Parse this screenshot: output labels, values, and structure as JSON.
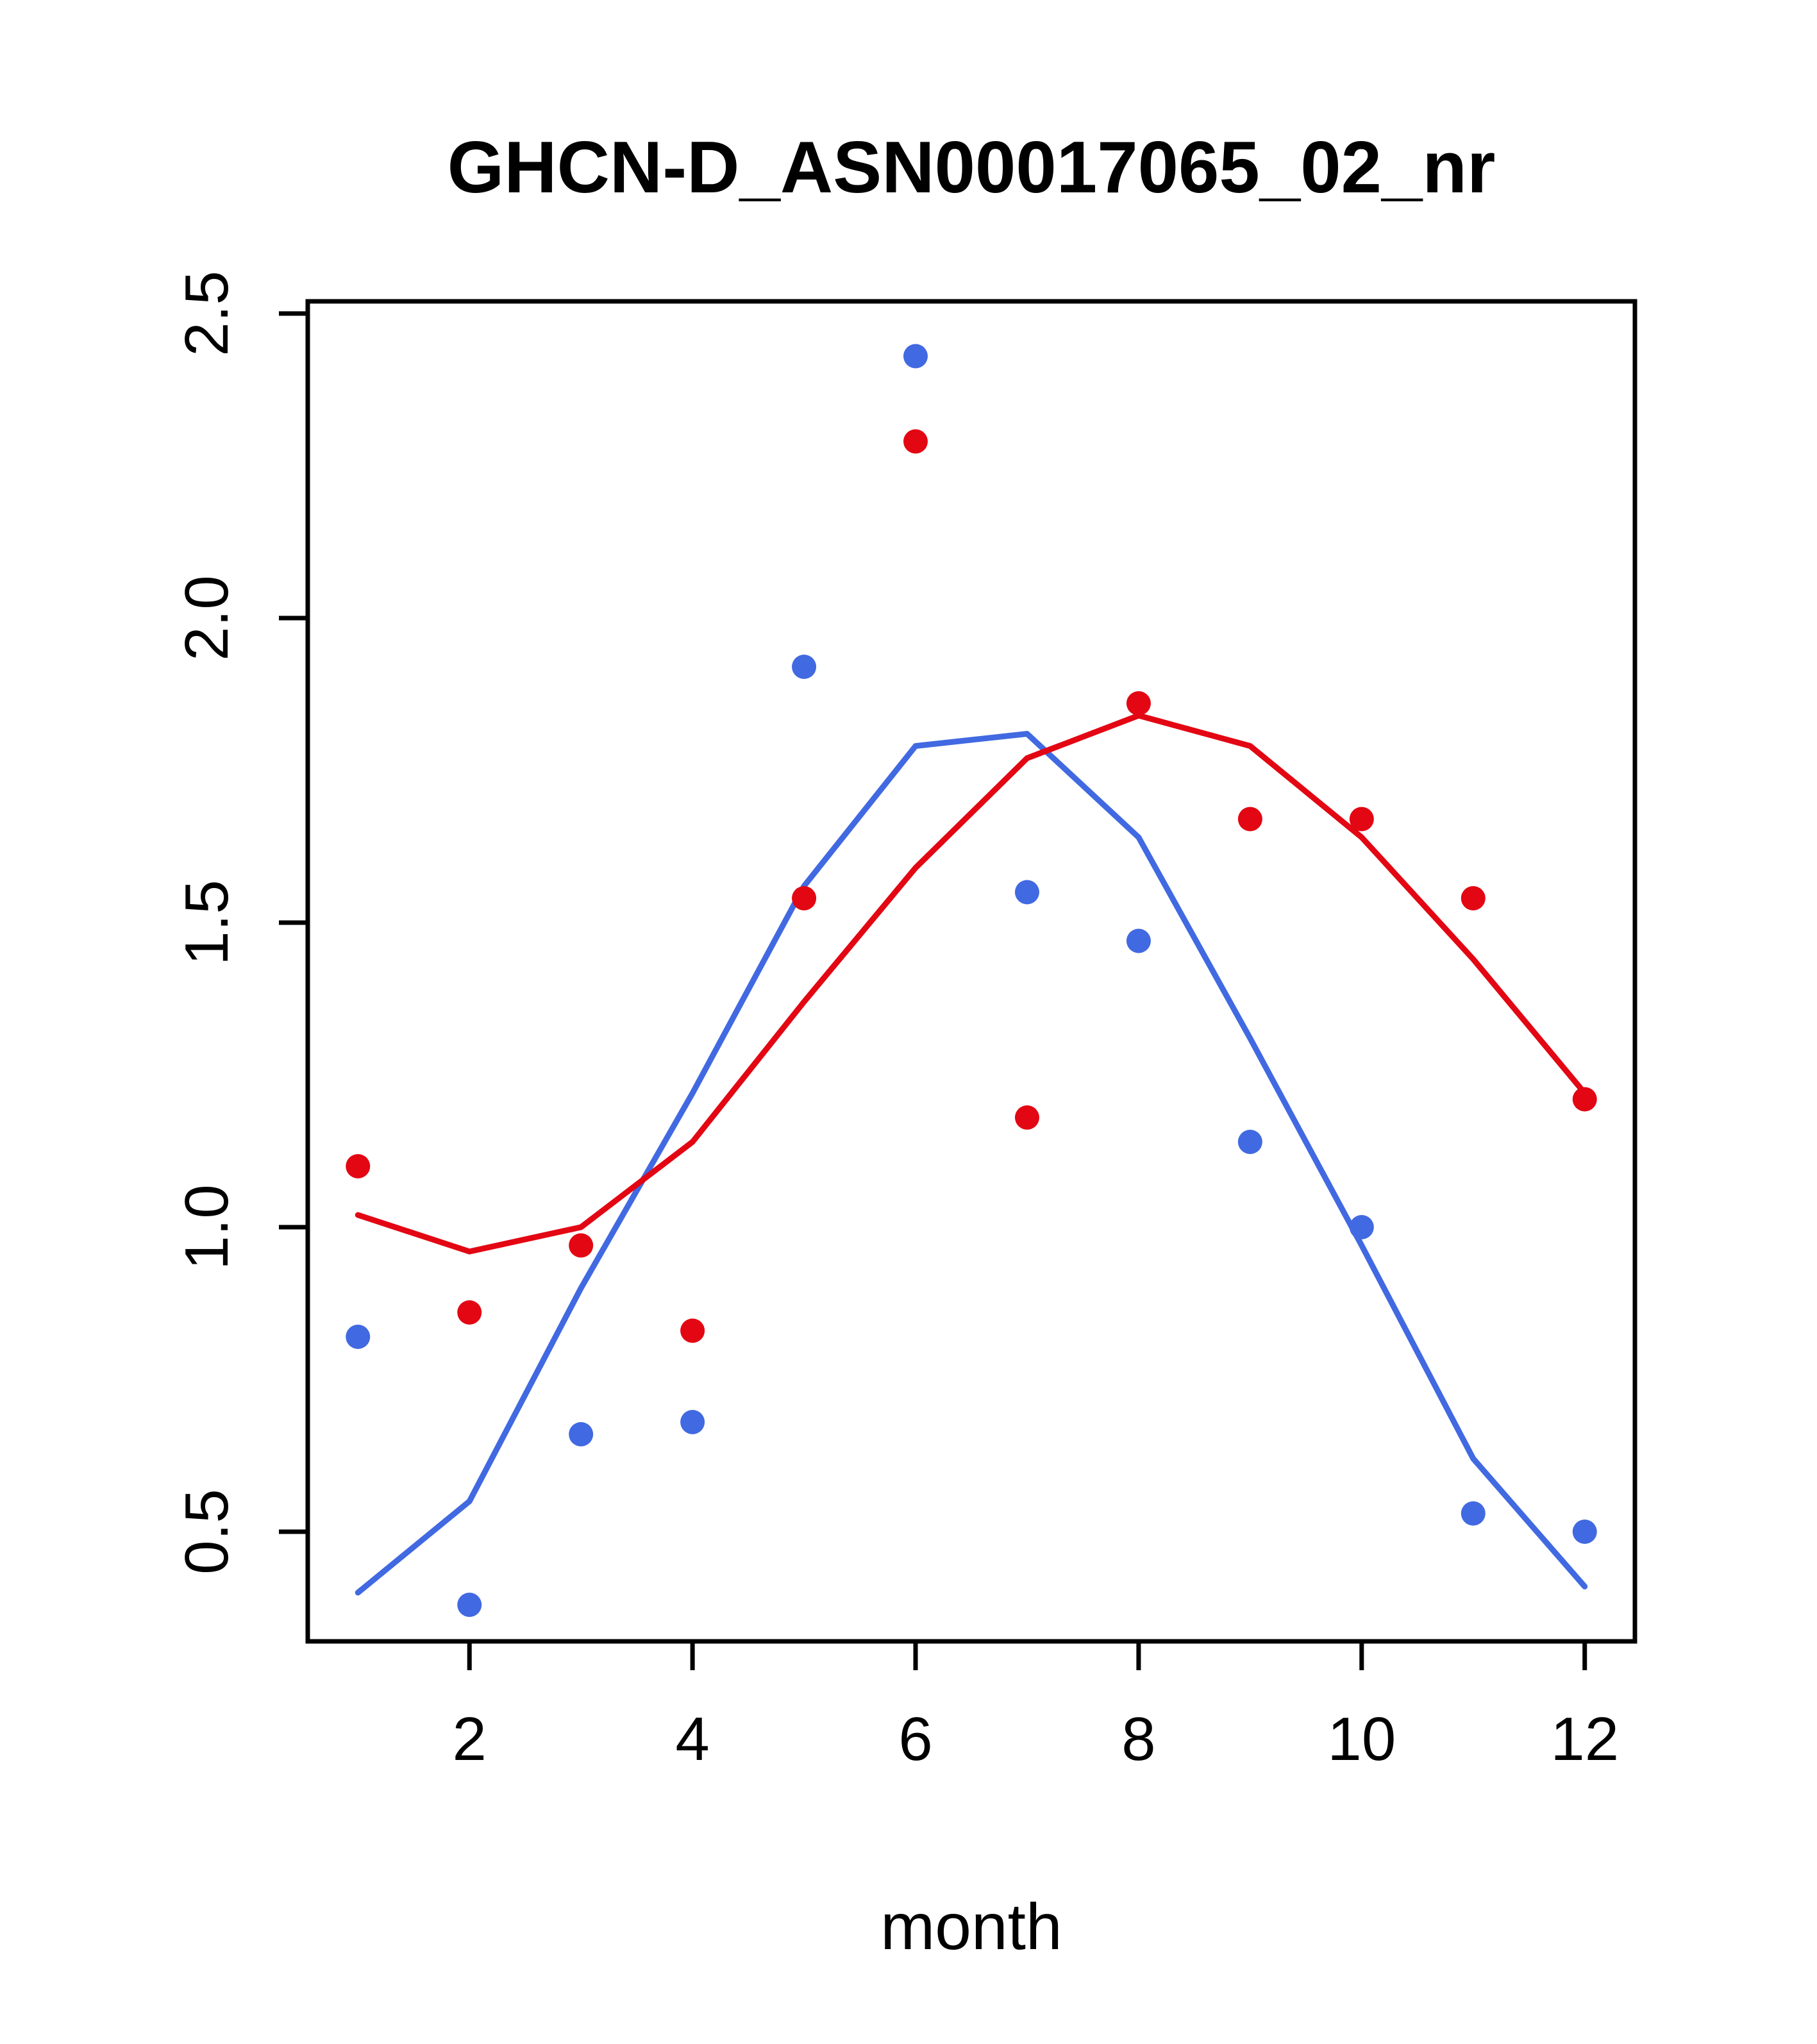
{
  "chart_data": {
    "type": "scatter",
    "title": "GHCN-D_ASN00017065_02_nr",
    "xlabel": "month",
    "ylabel": "",
    "xlim": [
      0.55,
      12.45
    ],
    "ylim": [
      0.32,
      2.52
    ],
    "x_ticks": [
      2,
      4,
      6,
      8,
      10,
      12
    ],
    "x_tick_labels": [
      "2",
      "4",
      "6",
      "8",
      "10",
      "12"
    ],
    "y_ticks": [
      0.5,
      1.0,
      1.5,
      2.0,
      2.5
    ],
    "y_tick_labels": [
      "0.5",
      "1.0",
      "1.5",
      "2.0",
      "2.5"
    ],
    "grid": false,
    "legend": "none",
    "x": [
      1,
      2,
      3,
      4,
      5,
      6,
      7,
      8,
      9,
      10,
      11,
      12
    ],
    "colors": {
      "blue": "#4169e1",
      "red": "#e30613",
      "axis": "#000000"
    },
    "series": [
      {
        "name": "blue-points",
        "mark": "points",
        "color_key": "blue",
        "values": [
          0.82,
          0.38,
          0.66,
          0.68,
          1.92,
          2.43,
          1.55,
          1.47,
          1.14,
          1.0,
          0.53,
          0.5
        ]
      },
      {
        "name": "red-points",
        "mark": "points",
        "color_key": "red",
        "values": [
          1.1,
          0.86,
          0.97,
          0.83,
          1.54,
          2.29,
          1.18,
          1.86,
          1.67,
          1.67,
          1.54,
          1.21
        ]
      },
      {
        "name": "blue-smooth-line",
        "mark": "line",
        "color_key": "blue",
        "values": [
          0.4,
          0.55,
          0.9,
          1.22,
          1.56,
          1.79,
          1.81,
          1.64,
          1.31,
          0.97,
          0.62,
          0.41
        ]
      },
      {
        "name": "red-smooth-line",
        "mark": "line",
        "color_key": "red",
        "values": [
          1.02,
          0.96,
          1.0,
          1.14,
          1.37,
          1.59,
          1.77,
          1.84,
          1.79,
          1.64,
          1.44,
          1.22
        ]
      }
    ]
  }
}
